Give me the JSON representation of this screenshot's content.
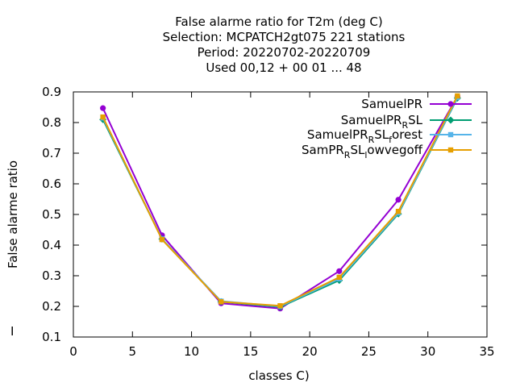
{
  "chart_data": {
    "type": "line",
    "title_lines": [
      "False alarme ratio  for T2m (deg C)",
      "Selection: MCPATCH2gt075    221 stations",
      "Period: 20220702-20220709",
      "Used  00,12  + 00 01 ... 48"
    ],
    "xlabel": "classes C)",
    "ylabel": "False alarme ratio",
    "side_mark": "I",
    "xlim": [
      0,
      35
    ],
    "ylim": [
      0.1,
      0.9
    ],
    "x_ticks": [
      0,
      5,
      10,
      15,
      20,
      25,
      30,
      35
    ],
    "y_ticks": [
      0.1,
      0.2,
      0.3,
      0.4,
      0.5,
      0.6,
      0.7,
      0.8,
      0.9
    ],
    "grid": false,
    "legend_position": "top-right",
    "x": [
      2.5,
      7.5,
      12.5,
      17.5,
      22.5,
      27.5,
      32.5
    ],
    "series": [
      {
        "label_parts": [
          [
            "SamuelPR",
            ""
          ]
        ],
        "color": "#9400d3",
        "marker": "circle",
        "values": [
          0.847,
          0.432,
          0.21,
          0.193,
          0.315,
          0.548,
          0.885
        ]
      },
      {
        "label_parts": [
          [
            "SamuelPR",
            ""
          ],
          [
            "R",
            "sub"
          ],
          [
            "SL",
            ""
          ]
        ],
        "color": "#009e73",
        "marker": "diamond",
        "values": [
          0.81,
          0.42,
          0.215,
          0.198,
          0.285,
          0.502,
          0.88
        ]
      },
      {
        "label_parts": [
          [
            "SamuelPR",
            ""
          ],
          [
            "R",
            "sub"
          ],
          [
            "SL",
            ""
          ],
          [
            "f",
            "sub"
          ],
          [
            "orest",
            ""
          ]
        ],
        "color": "#56b4e9",
        "marker": "square",
        "values": [
          0.815,
          0.42,
          0.217,
          0.2,
          0.29,
          0.505,
          0.882
        ]
      },
      {
        "label_parts": [
          [
            "SamPR",
            ""
          ],
          [
            "R",
            "sub"
          ],
          [
            "SL",
            ""
          ],
          [
            "l",
            "sub"
          ],
          [
            "owvegoff",
            ""
          ]
        ],
        "color": "#e69f00",
        "marker": "square",
        "values": [
          0.818,
          0.418,
          0.215,
          0.202,
          0.295,
          0.51,
          0.887
        ]
      }
    ]
  }
}
